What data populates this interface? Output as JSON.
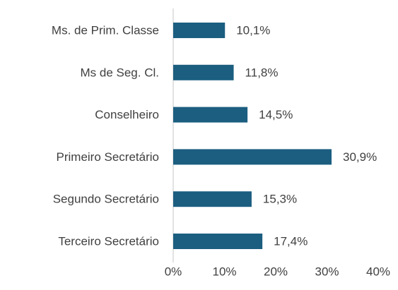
{
  "chart_data": {
    "type": "hbar",
    "categories": [
      "Ms. de Prim. Classe",
      "Ms de Seg. Cl.",
      "Conselheiro",
      "Primeiro Secretário",
      "Segundo Secretário",
      "Terceiro Secretário"
    ],
    "values": [
      10.1,
      11.8,
      14.5,
      30.9,
      15.3,
      17.4
    ],
    "value_labels": [
      "10,1%",
      "11,8%",
      "14,5%",
      "30,9%",
      "15,3%",
      "17,4%"
    ],
    "color": "#1b5e80",
    "xlim": [
      0,
      40
    ],
    "xticks": [
      {
        "value": 0,
        "label": "0%"
      },
      {
        "value": 10,
        "label": "10%"
      },
      {
        "value": 20,
        "label": "20%"
      },
      {
        "value": 30,
        "label": "30%"
      },
      {
        "value": 40,
        "label": "40%"
      }
    ]
  }
}
